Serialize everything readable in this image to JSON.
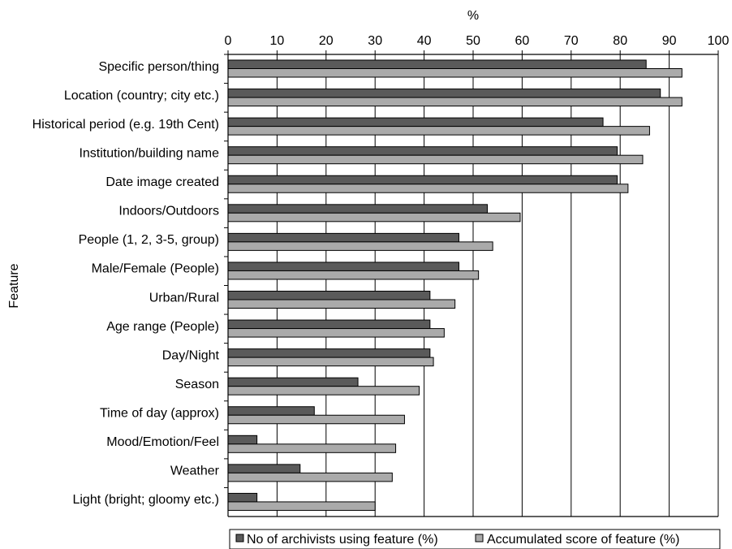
{
  "chart_data": {
    "type": "bar",
    "orientation": "horizontal",
    "xlabel": "%",
    "ylabel": "Feature",
    "xlim": [
      0,
      100
    ],
    "xticks": [
      0,
      10,
      20,
      30,
      40,
      50,
      60,
      70,
      80,
      90,
      100
    ],
    "x_axis_position": "top",
    "grid": "vertical",
    "legend_position": "bottom",
    "categories": [
      "Specific person/thing",
      "Location (country; city etc.)",
      "Historical period (e.g. 19th Cent)",
      "Institution/building name",
      "Date image created",
      "Indoors/Outdoors",
      "People (1, 2, 3-5, group)",
      "Male/Female (People)",
      "Urban/Rural",
      "Age range (People)",
      "Day/Night",
      "Season",
      "Time of day (approx)",
      "Mood/Emotion/Feel",
      "Weather",
      "Light (bright; gloomy etc.)"
    ],
    "series": [
      {
        "name": "No of archivists using feature (%)",
        "color": "#5a5a5a",
        "values": [
          85.3,
          88.2,
          76.5,
          79.4,
          79.4,
          52.9,
          47.1,
          47.1,
          41.2,
          41.2,
          41.2,
          26.5,
          17.6,
          5.9,
          14.7,
          5.9
        ]
      },
      {
        "name": "Accumulated score of feature (%)",
        "color": "#aaaaaa",
        "values": [
          92.6,
          92.6,
          86.0,
          84.6,
          81.6,
          59.6,
          54.0,
          51.1,
          46.3,
          44.1,
          41.9,
          39.0,
          36.0,
          34.2,
          33.5,
          30.0
        ]
      }
    ]
  }
}
